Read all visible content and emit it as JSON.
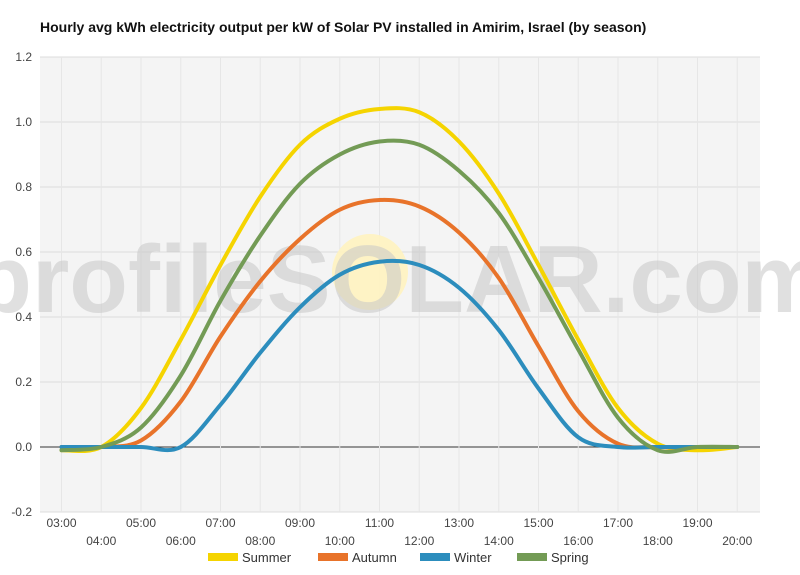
{
  "chart_data": {
    "type": "line",
    "title": "Hourly avg kWh electricity output per kW of Solar PV installed in Amirim, Israel (by season)",
    "xlabel": "",
    "ylabel": "",
    "watermark": "profileSOLAR.com",
    "categories": [
      "03:00",
      "04:00",
      "05:00",
      "06:00",
      "07:00",
      "08:00",
      "09:00",
      "10:00",
      "11:00",
      "12:00",
      "13:00",
      "14:00",
      "15:00",
      "16:00",
      "17:00",
      "18:00",
      "19:00",
      "20:00"
    ],
    "ylim": [
      -0.2,
      1.2
    ],
    "yticks": [
      "-0.2",
      "0.0",
      "0.2",
      "0.4",
      "0.6",
      "0.8",
      "1.0",
      "1.2"
    ],
    "grid": true,
    "legend_position": "bottom",
    "series": [
      {
        "name": "Summer",
        "color": "#f5d400",
        "values": [
          -0.01,
          0.0,
          0.12,
          0.33,
          0.56,
          0.77,
          0.93,
          1.01,
          1.04,
          1.03,
          0.94,
          0.78,
          0.56,
          0.33,
          0.12,
          0.01,
          -0.01,
          0.0
        ]
      },
      {
        "name": "Autumn",
        "color": "#e8732a",
        "values": [
          0.0,
          0.0,
          0.02,
          0.14,
          0.34,
          0.51,
          0.64,
          0.73,
          0.76,
          0.74,
          0.66,
          0.52,
          0.31,
          0.11,
          0.01,
          0.0,
          0.0,
          0.0
        ]
      },
      {
        "name": "Winter",
        "color": "#2c8dbd",
        "values": [
          0.0,
          0.0,
          0.0,
          0.0,
          0.13,
          0.29,
          0.43,
          0.53,
          0.57,
          0.56,
          0.49,
          0.36,
          0.18,
          0.03,
          0.0,
          0.0,
          0.0,
          0.0
        ]
      },
      {
        "name": "Spring",
        "color": "#739b55",
        "values": [
          -0.01,
          0.0,
          0.06,
          0.22,
          0.45,
          0.65,
          0.81,
          0.9,
          0.94,
          0.93,
          0.85,
          0.72,
          0.52,
          0.3,
          0.09,
          -0.01,
          0.0,
          0.0
        ]
      }
    ]
  }
}
